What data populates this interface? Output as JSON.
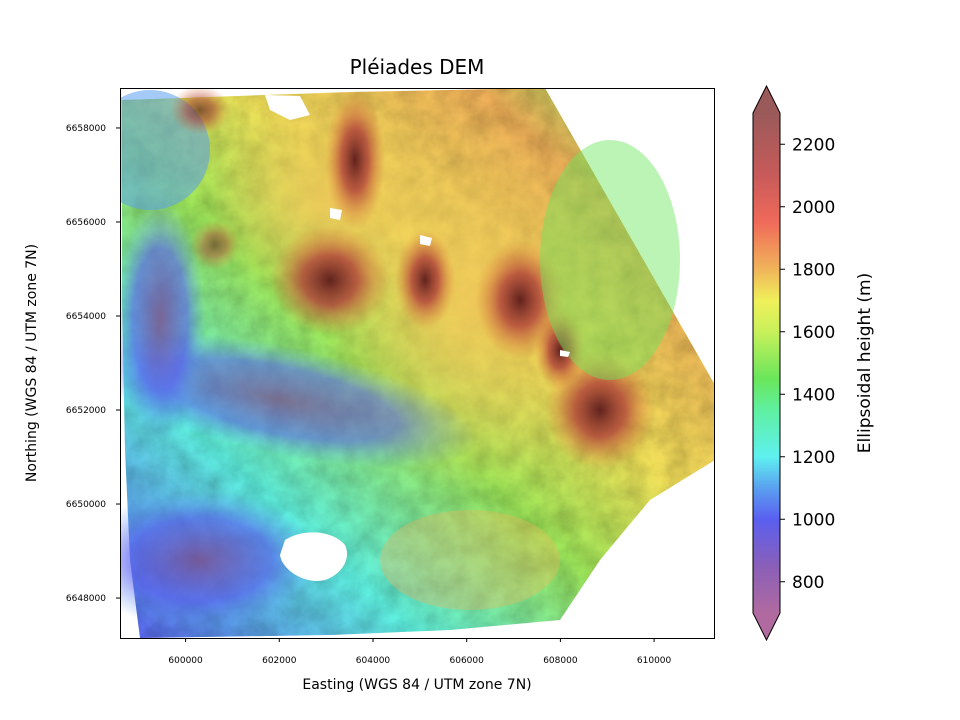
{
  "chart_data": {
    "type": "heatmap",
    "title": "Pléiades DEM",
    "xlabel": "Easting (WGS 84 / UTM zone 7N)",
    "ylabel": "Northing (WGS 84 / UTM zone 7N)",
    "xlim": [
      598600,
      611300
    ],
    "ylim": [
      6647150,
      6658850
    ],
    "xticks": [
      600000,
      602000,
      604000,
      606000,
      608000,
      610000
    ],
    "xtick_labels": [
      "600000",
      "602000",
      "604000",
      "606000",
      "608000",
      "610000"
    ],
    "yticks": [
      6648000,
      6650000,
      6652000,
      6654000,
      6656000,
      6658000
    ],
    "ytick_labels": [
      "6648000",
      "6650000",
      "6652000",
      "6654000",
      "6656000",
      "6658000"
    ],
    "colorbar": {
      "label": "Ellipsoidal height (m)",
      "range": [
        700,
        2300
      ],
      "extend": "both",
      "ticks": [
        800,
        1000,
        1200,
        1400,
        1600,
        1800,
        2000,
        2200
      ],
      "tick_labels": [
        "800",
        "1000",
        "1200",
        "1400",
        "1600",
        "1800",
        "2000",
        "2200"
      ],
      "colors": [
        {
          "value": 700,
          "color": "#b06aa0"
        },
        {
          "value": 850,
          "color": "#8a5fb8"
        },
        {
          "value": 1000,
          "color": "#5a5ff0"
        },
        {
          "value": 1100,
          "color": "#5aa0f0"
        },
        {
          "value": 1200,
          "color": "#5ff0f0"
        },
        {
          "value": 1350,
          "color": "#5ff0a0"
        },
        {
          "value": 1450,
          "color": "#6ae65a"
        },
        {
          "value": 1600,
          "color": "#c8f05a"
        },
        {
          "value": 1700,
          "color": "#f0f05a"
        },
        {
          "value": 1800,
          "color": "#f0b45a"
        },
        {
          "value": 1950,
          "color": "#f06a5a"
        },
        {
          "value": 2100,
          "color": "#c85a5a"
        },
        {
          "value": 2300,
          "color": "#9a5a5a"
        }
      ]
    }
  }
}
